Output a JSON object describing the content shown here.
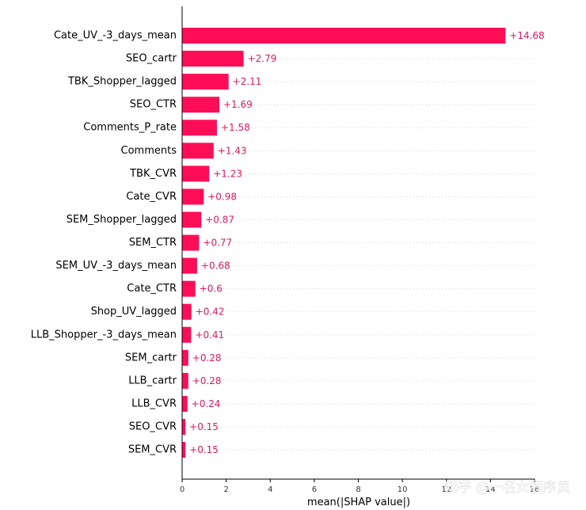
{
  "chart_data": {
    "type": "bar",
    "orientation": "horizontal",
    "categories": [
      "Cate_UV_-3_days_mean",
      "SEO_cartr",
      "TBK_Shopper_lagged",
      "SEO_CTR",
      "Comments_P_rate",
      "Comments",
      "TBK_CVR",
      "Cate_CVR",
      "SEM_Shopper_lagged",
      "SEM_CTR",
      "SEM_UV_-3_days_mean",
      "Cate_CTR",
      "Shop_UV_lagged",
      "LLB_Shopper_-3_days_mean",
      "SEM_cartr",
      "LLB_cartr",
      "LLB_CVR",
      "SEO_CVR",
      "SEM_CVR"
    ],
    "values": [
      14.68,
      2.79,
      2.11,
      1.69,
      1.58,
      1.43,
      1.23,
      0.98,
      0.87,
      0.77,
      0.68,
      0.6,
      0.42,
      0.41,
      0.28,
      0.28,
      0.24,
      0.15,
      0.15
    ],
    "value_labels": [
      "+14.68",
      "+2.79",
      "+2.11",
      "+1.69",
      "+1.58",
      "+1.43",
      "+1.23",
      "+0.98",
      "+0.87",
      "+0.77",
      "+0.68",
      "+0.6",
      "+0.42",
      "+0.41",
      "+0.28",
      "+0.28",
      "+0.24",
      "+0.15",
      "+0.15"
    ],
    "title": "",
    "xlabel": "mean(|SHAP value|)",
    "ylabel": "",
    "xlim": [
      0,
      16
    ],
    "xticks": [
      0,
      2,
      4,
      6,
      8,
      10,
      12,
      14,
      16
    ],
    "grid": "horizontal dotted",
    "bar_color": "#ff0d57",
    "value_label_color": "#d81b60"
  },
  "watermark": "知乎 @一名女程序员"
}
